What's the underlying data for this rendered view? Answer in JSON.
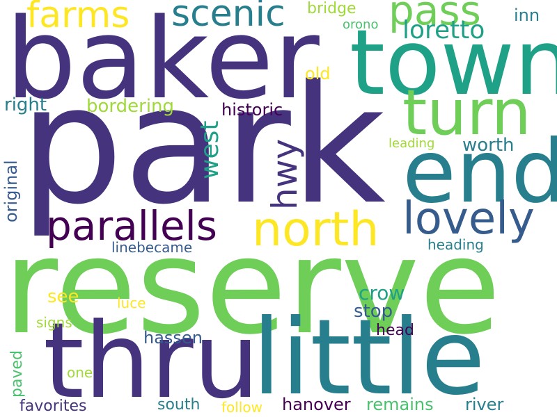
{
  "palette": {
    "dark_purple": "#440154",
    "indigo": "#46337e",
    "steel_blue": "#365c8d",
    "teal": "#277f8e",
    "sea_green": "#1fa187",
    "green": "#4ac16d",
    "light_green": "#6ece58",
    "yellow_green": "#a0da39",
    "yellow": "#fde725"
  },
  "words": {
    "park": "park",
    "reserve": "reserve",
    "baker": "baker",
    "town": "town",
    "thru": "thru",
    "little": "little",
    "end": "end",
    "turn": "turn",
    "north": "north",
    "parallels": "parallels",
    "lovely": "lovely",
    "pass": "pass",
    "scenic": "scenic",
    "farms": "farms",
    "hwy": "hwy",
    "west": "west",
    "loretto": "loretto",
    "bridge": "bridge",
    "inn": "inn",
    "orono": "orono",
    "old": "old",
    "right": "right",
    "bordering": "bordering",
    "historic": "historic",
    "original": "original",
    "leading": "leading",
    "worth": "worth",
    "linebecame": "linebecame",
    "heading": "heading",
    "crow": "crow",
    "see": "see",
    "luce": "luce",
    "stop": "stop",
    "signs": "signs",
    "head": "head",
    "hassen": "hassen",
    "paved": "paved",
    "one": "one",
    "favorites": "favorites",
    "south": "south",
    "follow": "follow",
    "hanover": "hanover",
    "remains": "remains",
    "river": "river"
  }
}
